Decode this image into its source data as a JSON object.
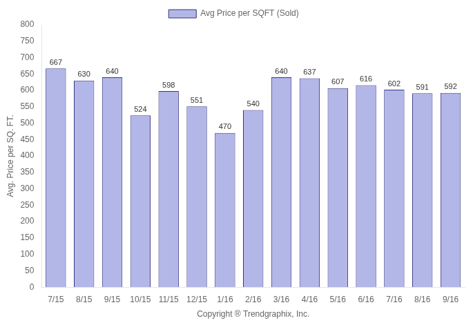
{
  "chart_data": {
    "type": "bar",
    "categories": [
      "7/15",
      "8/15",
      "9/15",
      "10/15",
      "11/15",
      "12/15",
      "1/16",
      "2/16",
      "3/16",
      "4/16",
      "5/16",
      "6/16",
      "7/16",
      "8/16",
      "9/16"
    ],
    "series": [
      {
        "name": "Avg Price per SQFT (Sold)",
        "color": "#b3b7e8",
        "values": [
          667,
          630,
          640,
          524,
          598,
          551,
          470,
          540,
          640,
          637,
          607,
          616,
          602,
          591,
          592
        ]
      }
    ],
    "xlabel": "Copyright ® Trendgraphix, Inc.",
    "ylabel": "Avg. Price per SQ. FT.",
    "ylim": [
      0,
      800
    ],
    "yticks": [
      0,
      50,
      100,
      150,
      200,
      250,
      300,
      350,
      400,
      450,
      500,
      550,
      600,
      650,
      700,
      750,
      800
    ],
    "grid": false,
    "legend": "top",
    "data_labels": true
  }
}
